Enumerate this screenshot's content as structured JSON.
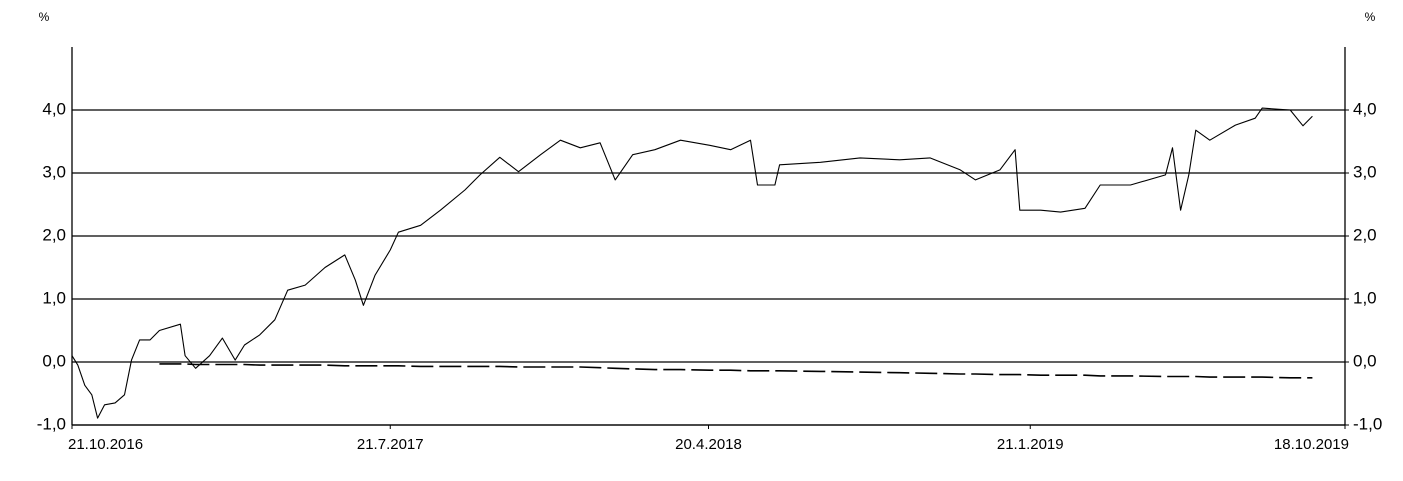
{
  "chart_data": {
    "type": "line",
    "ylabel": "%",
    "y2label": "%",
    "xlim": [
      "2016-10-21",
      "2019-10-18"
    ],
    "xticks": [
      {
        "value": "2016-10-21",
        "label": "21.10.2016"
      },
      {
        "value": "2017-07-21",
        "label": "21.7.2017"
      },
      {
        "value": "2018-04-20",
        "label": "20.4.2018"
      },
      {
        "value": "2019-01-21",
        "label": "21.1.2019"
      },
      {
        "value": "2019-10-18",
        "label": "18.10.2019"
      }
    ],
    "ylim": [
      -1,
      5
    ],
    "yticks": [
      {
        "value": -1,
        "label": "-1,0"
      },
      {
        "value": 0,
        "label": "0,0"
      },
      {
        "value": 1,
        "label": "1,0"
      },
      {
        "value": 2,
        "label": "2,0"
      },
      {
        "value": 3,
        "label": "3,0"
      },
      {
        "value": 4,
        "label": "4,0"
      }
    ],
    "y2lim": [
      -1,
      5
    ],
    "y2ticks": [
      {
        "value": -1,
        "label": "-1,0"
      },
      {
        "value": 0,
        "label": "0,0"
      },
      {
        "value": 1,
        "label": "1,0"
      },
      {
        "value": 2,
        "label": "2,0"
      },
      {
        "value": 3,
        "label": "3,0"
      },
      {
        "value": 4,
        "label": "4,0"
      }
    ],
    "grid": true,
    "x": [
      "2016-10-21",
      "2016-10-26",
      "2016-11-01",
      "2016-11-07",
      "2016-11-12",
      "2016-11-18",
      "2016-11-27",
      "2016-12-05",
      "2016-12-11",
      "2016-12-18",
      "2016-12-27",
      "2017-01-04",
      "2017-01-22",
      "2017-01-26",
      "2017-02-04",
      "2017-02-16",
      "2017-02-27",
      "2017-03-10",
      "2017-03-18",
      "2017-03-31",
      "2017-04-13",
      "2017-04-24",
      "2017-05-09",
      "2017-05-26",
      "2017-06-12",
      "2017-06-21",
      "2017-06-28",
      "2017-07-08",
      "2017-07-21",
      "2017-07-28",
      "2017-08-16",
      "2017-09-02",
      "2017-09-23",
      "2017-10-06",
      "2017-10-23",
      "2017-11-08",
      "2017-11-27",
      "2017-12-14",
      "2017-12-31",
      "2018-01-17",
      "2018-01-30",
      "2018-02-14",
      "2018-03-05",
      "2018-03-27",
      "2018-04-21",
      "2018-05-09",
      "2018-05-26",
      "2018-06-01",
      "2018-06-16",
      "2018-06-20",
      "2018-07-25",
      "2018-08-28",
      "2018-10-01",
      "2018-10-27",
      "2018-11-22",
      "2018-12-05",
      "2018-12-26",
      "2019-01-08",
      "2019-01-12",
      "2019-01-30",
      "2019-02-16",
      "2019-03-09",
      "2019-03-22",
      "2019-04-17",
      "2019-05-17",
      "2019-05-23",
      "2019-05-30",
      "2019-06-06",
      "2019-06-12",
      "2019-06-24",
      "2019-07-16",
      "2019-08-02",
      "2019-08-08",
      "2019-09-01",
      "2019-09-12",
      "2019-09-20"
    ],
    "series": [
      {
        "color": "#000000",
        "line_style": "solid",
        "values": [
          0.1,
          -0.05,
          -0.37,
          -0.52,
          -0.89,
          -0.68,
          -0.65,
          -0.52,
          0.03,
          0.35,
          0.35,
          0.5,
          0.6,
          0.1,
          -0.1,
          0.1,
          0.38,
          0.03,
          0.27,
          0.43,
          0.67,
          1.14,
          1.22,
          1.5,
          1.7,
          1.3,
          0.9,
          1.38,
          1.78,
          2.06,
          2.17,
          2.41,
          2.73,
          2.97,
          3.25,
          3.02,
          3.29,
          3.52,
          3.4,
          3.48,
          2.89,
          3.29,
          3.37,
          3.52,
          3.44,
          3.37,
          3.52,
          2.81,
          2.81,
          3.13,
          3.17,
          3.24,
          3.21,
          3.24,
          3.05,
          2.89,
          3.05,
          3.37,
          2.41,
          2.41,
          2.38,
          2.44,
          2.81,
          2.81,
          2.97,
          3.4,
          2.41,
          2.97,
          3.68,
          3.52,
          3.76,
          3.87,
          4.03,
          4.0,
          3.75,
          3.9
        ]
      },
      {
        "color": "#000000",
        "line_style": "dashed",
        "values": [
          null,
          null,
          null,
          null,
          null,
          null,
          null,
          null,
          null,
          null,
          null,
          -0.03,
          -0.03,
          -0.03,
          -0.04,
          -0.04,
          -0.04,
          -0.04,
          -0.04,
          -0.05,
          -0.05,
          -0.05,
          -0.05,
          -0.05,
          -0.06,
          -0.06,
          -0.06,
          -0.06,
          -0.06,
          -0.06,
          -0.07,
          -0.07,
          -0.07,
          -0.07,
          -0.07,
          -0.08,
          -0.08,
          -0.08,
          -0.08,
          -0.09,
          -0.1,
          -0.11,
          -0.12,
          -0.12,
          -0.13,
          -0.13,
          -0.14,
          -0.14,
          -0.14,
          -0.14,
          -0.15,
          -0.16,
          -0.17,
          -0.18,
          -0.19,
          -0.19,
          -0.2,
          -0.2,
          -0.2,
          -0.21,
          -0.21,
          -0.21,
          -0.22,
          -0.22,
          -0.23,
          -0.23,
          -0.23,
          -0.23,
          -0.23,
          -0.24,
          -0.24,
          -0.24,
          -0.24,
          -0.25,
          -0.25,
          -0.25
        ]
      }
    ]
  }
}
